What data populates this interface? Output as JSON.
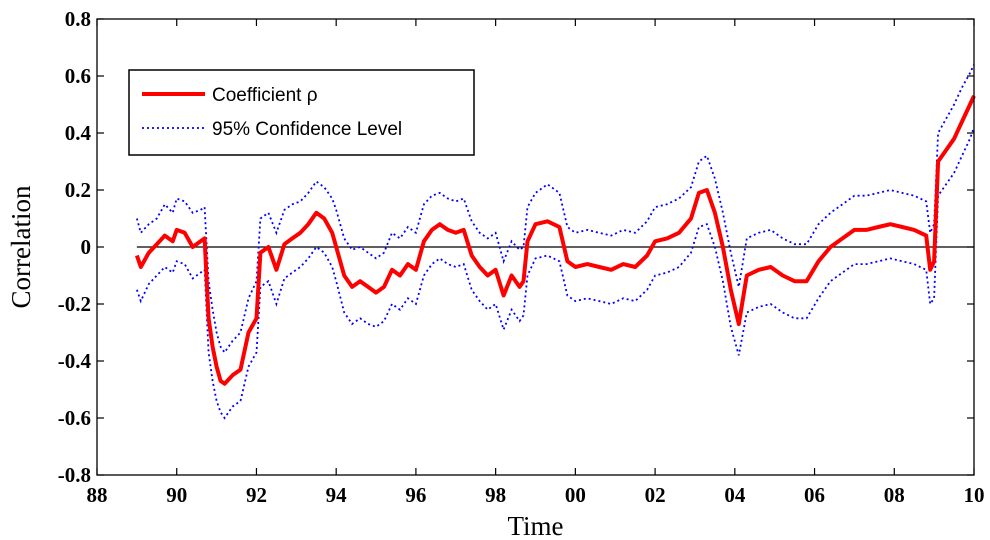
{
  "chart_data": {
    "type": "line",
    "title": "",
    "xlabel": "Time",
    "ylabel": "Correlation",
    "xlim": [
      1988,
      2010
    ],
    "ylim": [
      -0.8,
      0.8
    ],
    "x_ticks": [
      {
        "value": 1988,
        "label": "88"
      },
      {
        "value": 1990,
        "label": "90"
      },
      {
        "value": 1992,
        "label": "92"
      },
      {
        "value": 1994,
        "label": "94"
      },
      {
        "value": 1996,
        "label": "96"
      },
      {
        "value": 1998,
        "label": "98"
      },
      {
        "value": 2000,
        "label": "00"
      },
      {
        "value": 2002,
        "label": "02"
      },
      {
        "value": 2004,
        "label": "04"
      },
      {
        "value": 2006,
        "label": "06"
      },
      {
        "value": 2008,
        "label": "08"
      },
      {
        "value": 2010,
        "label": "10"
      }
    ],
    "y_ticks": [
      {
        "value": -0.8,
        "label": "-0.8"
      },
      {
        "value": -0.6,
        "label": "-0.6"
      },
      {
        "value": -0.4,
        "label": "-0.4"
      },
      {
        "value": -0.2,
        "label": "-0.2"
      },
      {
        "value": 0,
        "label": "0"
      },
      {
        "value": 0.2,
        "label": "0.2"
      },
      {
        "value": 0.4,
        "label": "0.4"
      },
      {
        "value": 0.6,
        "label": "0.6"
      },
      {
        "value": 0.8,
        "label": "0.8"
      }
    ],
    "grid": false,
    "legend": {
      "placement": "top-left",
      "entries": [
        "Coefficient ρ",
        "95% Confidence Level"
      ]
    },
    "reference_line_y": 0,
    "series": [
      {
        "name": "Coefficient ρ",
        "color": "#ff0000",
        "style": "solid-thick",
        "x": [
          1989.0,
          1989.1,
          1989.3,
          1989.5,
          1989.7,
          1989.9,
          1990.0,
          1990.2,
          1990.4,
          1990.6,
          1990.7,
          1990.8,
          1990.9,
          1991.0,
          1991.1,
          1991.2,
          1991.4,
          1991.6,
          1991.8,
          1992.0,
          1992.1,
          1992.3,
          1992.5,
          1992.7,
          1992.9,
          1993.1,
          1993.3,
          1993.5,
          1993.7,
          1993.9,
          1994.0,
          1994.2,
          1994.4,
          1994.6,
          1994.8,
          1995.0,
          1995.2,
          1995.4,
          1995.6,
          1995.8,
          1996.0,
          1996.2,
          1996.4,
          1996.6,
          1996.8,
          1997.0,
          1997.2,
          1997.4,
          1997.6,
          1997.8,
          1998.0,
          1998.2,
          1998.4,
          1998.6,
          1998.7,
          1998.8,
          1999.0,
          1999.3,
          1999.6,
          1999.8,
          2000.0,
          2000.3,
          2000.6,
          2000.9,
          2001.2,
          2001.5,
          2001.8,
          2002.0,
          2002.3,
          2002.6,
          2002.9,
          2003.1,
          2003.3,
          2003.5,
          2003.7,
          2003.9,
          2004.1,
          2004.3,
          2004.6,
          2004.9,
          2005.2,
          2005.5,
          2005.8,
          2006.1,
          2006.4,
          2006.7,
          2007.0,
          2007.3,
          2007.6,
          2007.9,
          2008.2,
          2008.5,
          2008.8,
          2008.9,
          2009.0,
          2009.1,
          2009.3,
          2009.5,
          2009.7,
          2009.9,
          2010.0
        ],
        "y": [
          -0.03,
          -0.07,
          -0.02,
          0.01,
          0.04,
          0.02,
          0.06,
          0.05,
          0.0,
          0.02,
          0.03,
          -0.25,
          -0.35,
          -0.42,
          -0.47,
          -0.48,
          -0.45,
          -0.43,
          -0.3,
          -0.25,
          -0.02,
          0.0,
          -0.08,
          0.01,
          0.03,
          0.05,
          0.08,
          0.12,
          0.1,
          0.05,
          0.0,
          -0.1,
          -0.14,
          -0.12,
          -0.14,
          -0.16,
          -0.14,
          -0.08,
          -0.1,
          -0.06,
          -0.08,
          0.02,
          0.06,
          0.08,
          0.06,
          0.05,
          0.06,
          -0.03,
          -0.07,
          -0.1,
          -0.08,
          -0.17,
          -0.1,
          -0.14,
          -0.12,
          0.02,
          0.08,
          0.09,
          0.07,
          -0.05,
          -0.07,
          -0.06,
          -0.07,
          -0.08,
          -0.06,
          -0.07,
          -0.03,
          0.02,
          0.03,
          0.05,
          0.1,
          0.19,
          0.2,
          0.12,
          0.0,
          -0.15,
          -0.27,
          -0.1,
          -0.08,
          -0.07,
          -0.1,
          -0.12,
          -0.12,
          -0.05,
          0.0,
          0.03,
          0.06,
          0.06,
          0.07,
          0.08,
          0.07,
          0.06,
          0.04,
          -0.08,
          -0.05,
          0.3,
          0.34,
          0.38,
          0.44,
          0.5,
          0.53
        ]
      },
      {
        "name": "95% Confidence Level",
        "color": "#0000ff",
        "style": "dotted",
        "x": [
          1989.0,
          1989.1,
          1989.3,
          1989.5,
          1989.7,
          1989.9,
          1990.0,
          1990.2,
          1990.4,
          1990.6,
          1990.7,
          1990.8,
          1990.9,
          1991.0,
          1991.1,
          1991.2,
          1991.4,
          1991.6,
          1991.8,
          1992.0,
          1992.1,
          1992.3,
          1992.5,
          1992.7,
          1992.9,
          1993.1,
          1993.3,
          1993.5,
          1993.7,
          1993.9,
          1994.0,
          1994.2,
          1994.4,
          1994.6,
          1994.8,
          1995.0,
          1995.2,
          1995.4,
          1995.6,
          1995.8,
          1996.0,
          1996.2,
          1996.4,
          1996.6,
          1996.8,
          1997.0,
          1997.2,
          1997.4,
          1997.6,
          1997.8,
          1998.0,
          1998.2,
          1998.4,
          1998.6,
          1998.7,
          1998.8,
          1999.0,
          1999.3,
          1999.6,
          1999.8,
          2000.0,
          2000.3,
          2000.6,
          2000.9,
          2001.2,
          2001.5,
          2001.8,
          2002.0,
          2002.3,
          2002.6,
          2002.9,
          2003.1,
          2003.3,
          2003.5,
          2003.7,
          2003.9,
          2004.1,
          2004.3,
          2004.6,
          2004.9,
          2005.2,
          2005.5,
          2005.8,
          2006.1,
          2006.4,
          2006.7,
          2007.0,
          2007.3,
          2007.6,
          2007.9,
          2008.2,
          2008.5,
          2008.8,
          2008.9,
          2009.0,
          2009.1,
          2009.3,
          2009.5,
          2009.7,
          2009.9,
          2010.0
        ],
        "y_upper": [
          0.1,
          0.05,
          0.08,
          0.1,
          0.15,
          0.12,
          0.17,
          0.16,
          0.12,
          0.13,
          0.14,
          -0.12,
          -0.22,
          -0.3,
          -0.35,
          -0.37,
          -0.33,
          -0.3,
          -0.18,
          -0.12,
          0.1,
          0.12,
          0.05,
          0.13,
          0.15,
          0.16,
          0.19,
          0.23,
          0.21,
          0.17,
          0.13,
          0.03,
          -0.01,
          0.0,
          -0.02,
          -0.04,
          -0.02,
          0.05,
          0.03,
          0.07,
          0.05,
          0.15,
          0.18,
          0.19,
          0.17,
          0.16,
          0.17,
          0.09,
          0.05,
          0.03,
          0.05,
          -0.05,
          0.02,
          -0.01,
          0.0,
          0.14,
          0.19,
          0.22,
          0.19,
          0.07,
          0.05,
          0.06,
          0.05,
          0.04,
          0.06,
          0.05,
          0.09,
          0.14,
          0.15,
          0.17,
          0.21,
          0.3,
          0.32,
          0.24,
          0.12,
          -0.02,
          -0.14,
          0.03,
          0.05,
          0.06,
          0.03,
          0.01,
          0.01,
          0.08,
          0.12,
          0.15,
          0.18,
          0.18,
          0.19,
          0.2,
          0.19,
          0.18,
          0.16,
          0.05,
          0.08,
          0.4,
          0.45,
          0.5,
          0.56,
          0.61,
          0.64
        ],
        "y_lower": [
          -0.15,
          -0.19,
          -0.13,
          -0.1,
          -0.07,
          -0.09,
          -0.05,
          -0.06,
          -0.11,
          -0.09,
          -0.08,
          -0.37,
          -0.47,
          -0.54,
          -0.58,
          -0.6,
          -0.56,
          -0.54,
          -0.42,
          -0.37,
          -0.14,
          -0.12,
          -0.2,
          -0.11,
          -0.09,
          -0.07,
          -0.04,
          0.0,
          -0.02,
          -0.07,
          -0.12,
          -0.23,
          -0.27,
          -0.25,
          -0.27,
          -0.28,
          -0.26,
          -0.2,
          -0.22,
          -0.18,
          -0.2,
          -0.1,
          -0.06,
          -0.04,
          -0.06,
          -0.07,
          -0.06,
          -0.15,
          -0.19,
          -0.22,
          -0.2,
          -0.29,
          -0.22,
          -0.26,
          -0.24,
          -0.1,
          -0.04,
          -0.03,
          -0.05,
          -0.17,
          -0.19,
          -0.18,
          -0.19,
          -0.2,
          -0.18,
          -0.19,
          -0.15,
          -0.1,
          -0.09,
          -0.07,
          -0.02,
          0.07,
          0.08,
          0.0,
          -0.12,
          -0.28,
          -0.38,
          -0.23,
          -0.21,
          -0.2,
          -0.23,
          -0.25,
          -0.25,
          -0.18,
          -0.12,
          -0.09,
          -0.06,
          -0.06,
          -0.05,
          -0.04,
          -0.05,
          -0.06,
          -0.08,
          -0.2,
          -0.18,
          0.18,
          0.22,
          0.26,
          0.32,
          0.38,
          0.42
        ]
      }
    ]
  }
}
